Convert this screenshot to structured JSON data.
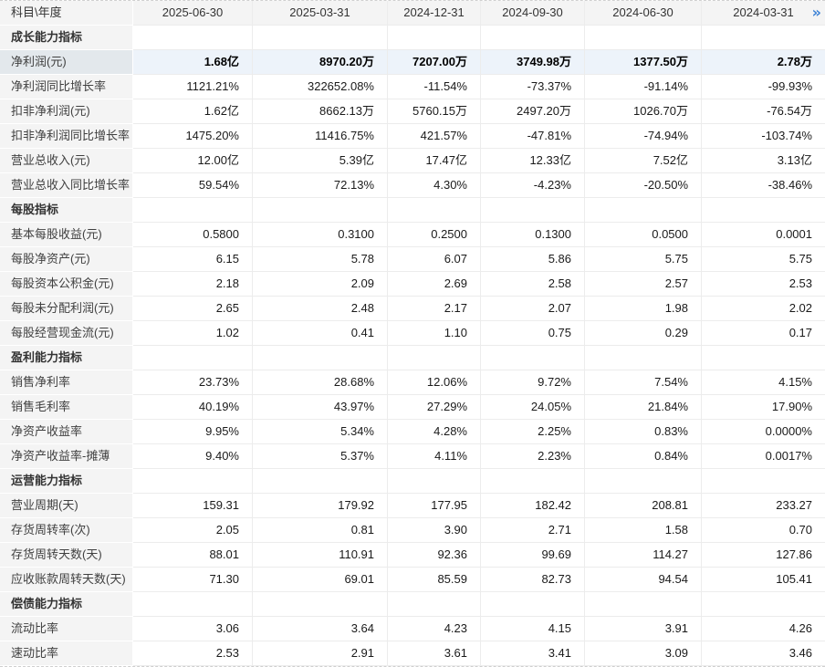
{
  "colors": {
    "accent_blue": "#3e83d6",
    "header_bg": "#f4f4f4",
    "label_col_bg": "#f4f4f4",
    "highlight_row_bg": "#edf3fa",
    "highlight_label_bg": "#e3e8ec"
  },
  "more_icon": "»",
  "chart_data": {
    "type": "table",
    "corner_label": "科目\\年度",
    "columns": [
      "2025-06-30",
      "2025-03-31",
      "2024-12-31",
      "2024-09-30",
      "2024-06-30",
      "2024-03-31"
    ],
    "sections": [
      {
        "title": "成长能力指标",
        "rows": [
          {
            "label": "净利润(元)",
            "highlight": true,
            "values": [
              "1.68亿",
              "8970.20万",
              "7207.00万",
              "3749.98万",
              "1377.50万",
              "2.78万"
            ]
          },
          {
            "label": "净利润同比增长率",
            "values": [
              "1121.21%",
              "322652.08%",
              "-11.54%",
              "-73.37%",
              "-91.14%",
              "-99.93%"
            ]
          },
          {
            "label": "扣非净利润(元)",
            "values": [
              "1.62亿",
              "8662.13万",
              "5760.15万",
              "2497.20万",
              "1026.70万",
              "-76.54万"
            ]
          },
          {
            "label": "扣非净利润同比增长率",
            "values": [
              "1475.20%",
              "11416.75%",
              "421.57%",
              "-47.81%",
              "-74.94%",
              "-103.74%"
            ]
          },
          {
            "label": "营业总收入(元)",
            "values": [
              "12.00亿",
              "5.39亿",
              "17.47亿",
              "12.33亿",
              "7.52亿",
              "3.13亿"
            ]
          },
          {
            "label": "营业总收入同比增长率",
            "values": [
              "59.54%",
              "72.13%",
              "4.30%",
              "-4.23%",
              "-20.50%",
              "-38.46%"
            ]
          }
        ]
      },
      {
        "title": "每股指标",
        "rows": [
          {
            "label": "基本每股收益(元)",
            "values": [
              "0.5800",
              "0.3100",
              "0.2500",
              "0.1300",
              "0.0500",
              "0.0001"
            ]
          },
          {
            "label": "每股净资产(元)",
            "values": [
              "6.15",
              "5.78",
              "6.07",
              "5.86",
              "5.75",
              "5.75"
            ]
          },
          {
            "label": "每股资本公积金(元)",
            "values": [
              "2.18",
              "2.09",
              "2.69",
              "2.58",
              "2.57",
              "2.53"
            ]
          },
          {
            "label": "每股未分配利润(元)",
            "values": [
              "2.65",
              "2.48",
              "2.17",
              "2.07",
              "1.98",
              "2.02"
            ]
          },
          {
            "label": "每股经营现金流(元)",
            "values": [
              "1.02",
              "0.41",
              "1.10",
              "0.75",
              "0.29",
              "0.17"
            ]
          }
        ]
      },
      {
        "title": "盈利能力指标",
        "rows": [
          {
            "label": "销售净利率",
            "values": [
              "23.73%",
              "28.68%",
              "12.06%",
              "9.72%",
              "7.54%",
              "4.15%"
            ]
          },
          {
            "label": "销售毛利率",
            "values": [
              "40.19%",
              "43.97%",
              "27.29%",
              "24.05%",
              "21.84%",
              "17.90%"
            ]
          },
          {
            "label": "净资产收益率",
            "values": [
              "9.95%",
              "5.34%",
              "4.28%",
              "2.25%",
              "0.83%",
              "0.0000%"
            ]
          },
          {
            "label": "净资产收益率-摊薄",
            "values": [
              "9.40%",
              "5.37%",
              "4.11%",
              "2.23%",
              "0.84%",
              "0.0017%"
            ]
          }
        ]
      },
      {
        "title": "运营能力指标",
        "rows": [
          {
            "label": "营业周期(天)",
            "values": [
              "159.31",
              "179.92",
              "177.95",
              "182.42",
              "208.81",
              "233.27"
            ]
          },
          {
            "label": "存货周转率(次)",
            "values": [
              "2.05",
              "0.81",
              "3.90",
              "2.71",
              "1.58",
              "0.70"
            ]
          },
          {
            "label": "存货周转天数(天)",
            "values": [
              "88.01",
              "110.91",
              "92.36",
              "99.69",
              "114.27",
              "127.86"
            ]
          },
          {
            "label": "应收账款周转天数(天)",
            "values": [
              "71.30",
              "69.01",
              "85.59",
              "82.73",
              "94.54",
              "105.41"
            ]
          }
        ]
      },
      {
        "title": "偿债能力指标",
        "rows": [
          {
            "label": "流动比率",
            "values": [
              "3.06",
              "3.64",
              "4.23",
              "4.15",
              "3.91",
              "4.26"
            ]
          },
          {
            "label": "速动比率",
            "values": [
              "2.53",
              "2.91",
              "3.61",
              "3.41",
              "3.09",
              "3.46"
            ]
          }
        ]
      }
    ]
  }
}
